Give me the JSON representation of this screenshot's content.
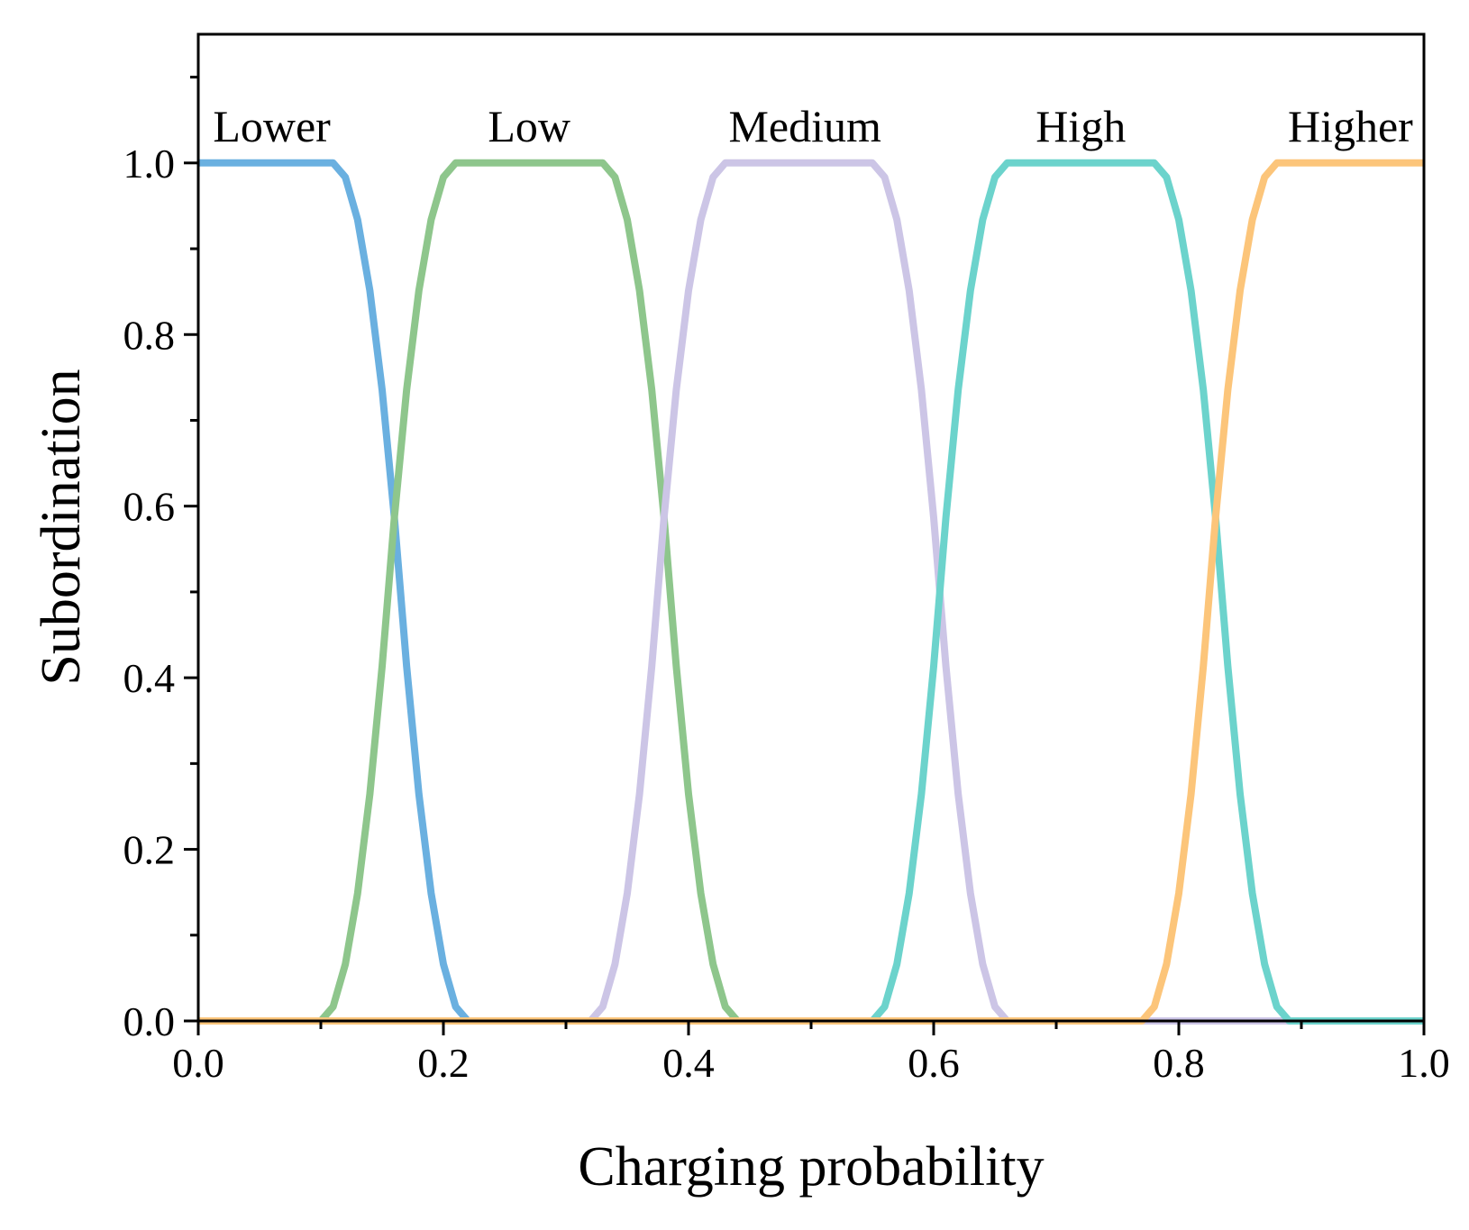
{
  "chart_data": {
    "type": "line",
    "title": "",
    "xlabel": "Charging probability",
    "ylabel": "Subordination",
    "xlim": [
      0.0,
      1.0
    ],
    "ylim": [
      0.0,
      1.15
    ],
    "grid": false,
    "legend": "labels above curves",
    "x_ticks": [
      "0.0",
      "0.2",
      "0.4",
      "0.6",
      "0.8",
      "1.0"
    ],
    "y_ticks": [
      "0.0",
      "0.2",
      "0.4",
      "0.6",
      "0.8",
      "1.0"
    ],
    "series": [
      {
        "name": "Lower",
        "color": "#6ab0e0",
        "shape": "z",
        "params": [
          0.11,
          0.22
        ],
        "label_x": 0.06
      },
      {
        "name": "Low",
        "color": "#8ec68c",
        "shape": "pi",
        "params": [
          0.1,
          0.21,
          0.33,
          0.44
        ],
        "label_x": 0.27
      },
      {
        "name": "Medium",
        "color": "#ccc5e6",
        "shape": "pi",
        "params": [
          0.32,
          0.43,
          0.55,
          0.66
        ],
        "label_x": 0.495
      },
      {
        "name": "High",
        "color": "#6cd3cc",
        "shape": "pi",
        "params": [
          0.55,
          0.66,
          0.78,
          0.89
        ],
        "label_x": 0.72
      },
      {
        "name": "Higher",
        "color": "#fcc57a",
        "shape": "s",
        "params": [
          0.77,
          0.88
        ],
        "label_x": 0.94
      }
    ]
  }
}
